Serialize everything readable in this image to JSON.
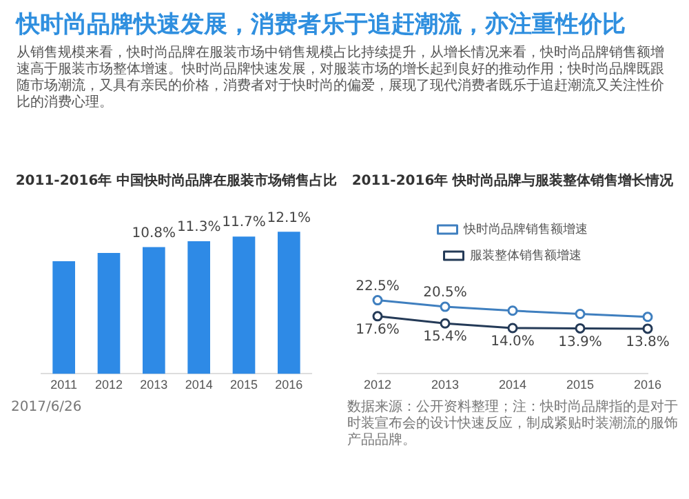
{
  "chart_data": [
    {
      "type": "other",
      "title": "快时尚品牌快速发展，消费者乐于追赶潮流，亦注重性价比",
      "annotations": [
        "从销售规模来看，快时尚品牌在服装市场中销售规模占比持续提升，从增长情况来看，快时尚品牌销售额增速高于服装市场整体增速。快时尚品牌快速发展，对服装市场的增长起到良好的推动作用；快时尚品牌既跟随市场潮流，又具有亲民的价格，消费者对于快时尚的偏爱，展现了现代消费者既乐于追赶潮流又关注性价比的消费心理。"
      ]
    },
    {
      "type": "bar",
      "title": "2011-2016年 中国快时尚品牌在服装市场销售占比",
      "categories": [
        "2011",
        "2012",
        "2013",
        "2014",
        "2015",
        "2016"
      ],
      "values": [
        9.6,
        10.3,
        10.8,
        11.3,
        11.7,
        12.1
      ],
      "value_labels": [
        null,
        null,
        "10.8%",
        "11.3%",
        "11.7%",
        "12.1%"
      ],
      "color": "#2e8ae6",
      "annotations": [
        "2017/6/26"
      ]
    },
    {
      "type": "line",
      "title": "2011-2016年 快时尚品牌与服装整体销售增长情况",
      "categories": [
        "2012",
        "2013",
        "2014",
        "2015",
        "2016"
      ],
      "legend": "top",
      "marker": "circle",
      "series": [
        {
          "name": "快时尚品牌销售额增速",
          "color": "#3f7fbf",
          "values": [
            22.5,
            20.5,
            19.3,
            18.3,
            17.4
          ],
          "value_labels": [
            "22.5%",
            "20.5%",
            null,
            null,
            null
          ]
        },
        {
          "name": "服装整体销售额增速",
          "color": "#243a57",
          "values": [
            17.6,
            15.4,
            14.0,
            13.9,
            13.8
          ],
          "value_labels": [
            "17.6%",
            "15.4%",
            "14.0%",
            "13.9%",
            "13.8%"
          ]
        }
      ],
      "annotations": [
        "数据来源：公开资料整理；注：快时尚品牌指的是对于时装宣布会的设计快速反应，制成紧贴时装潮流的服饰产品品牌。"
      ]
    }
  ]
}
